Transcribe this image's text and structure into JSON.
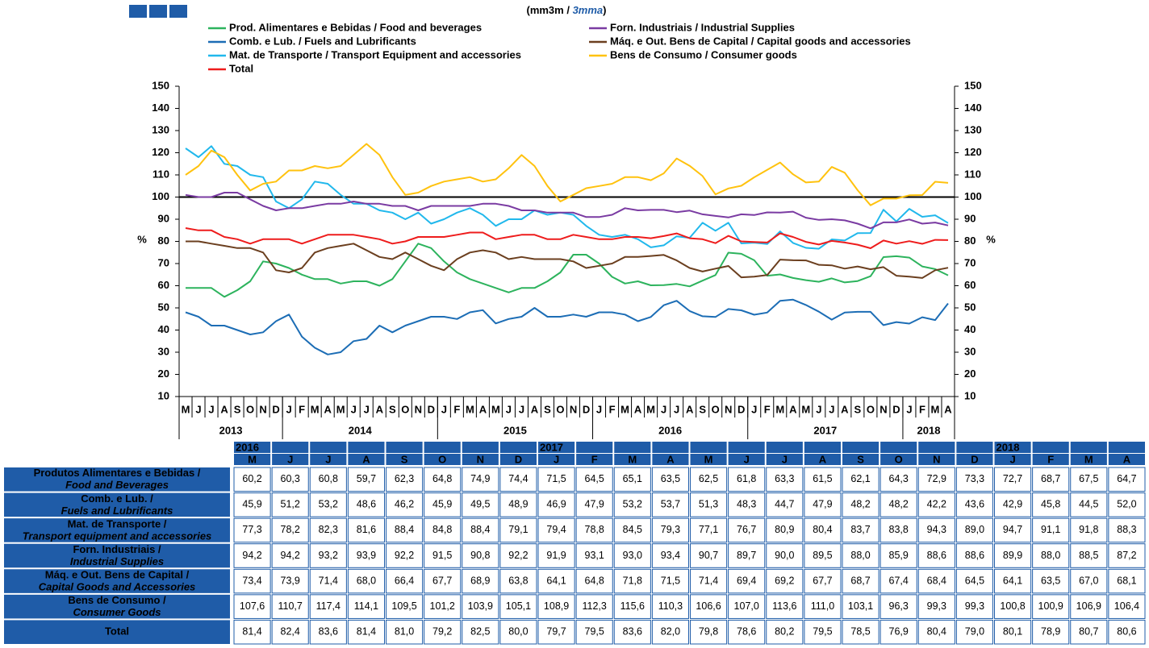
{
  "chart_data": {
    "type": "line",
    "unit_parts": [
      "(mm3m /",
      "3mma",
      ")"
    ],
    "y_axis_label": "%",
    "y2_axis_label": "%",
    "categories": [
      "M",
      "J",
      "J",
      "A",
      "S",
      "O",
      "N",
      "D",
      "J",
      "F",
      "M",
      "A",
      "M",
      "J",
      "J",
      "A",
      "S",
      "O",
      "N",
      "D",
      "J",
      "F",
      "M",
      "A",
      "M",
      "J",
      "J",
      "A",
      "S",
      "O",
      "N",
      "D",
      "J",
      "F",
      "M",
      "A",
      "M",
      "J",
      "J",
      "A",
      "S",
      "O",
      "N",
      "D",
      "J",
      "F",
      "M",
      "A",
      "M",
      "J",
      "J",
      "A",
      "S",
      "O",
      "N",
      "D",
      "J",
      "F",
      "M",
      "A"
    ],
    "year_labels": [
      "2013",
      "2014",
      "2015",
      "2016",
      "2017",
      "2018"
    ],
    "ylim": [
      10,
      150
    ],
    "yticks": [
      10,
      20,
      30,
      40,
      50,
      60,
      70,
      80,
      90,
      100,
      110,
      120,
      130,
      140,
      150
    ],
    "y2lim": [
      10,
      150
    ],
    "y2ticks": [
      10,
      20,
      30,
      40,
      50,
      60,
      70,
      80,
      90,
      100,
      110,
      120,
      130,
      140,
      150
    ],
    "reference_line": 100,
    "series": [
      {
        "name": "Prod. Alimentares e Bebidas / Food and beverages",
        "color": "#2db35d",
        "values": [
          59,
          59,
          59,
          55,
          58,
          62,
          71,
          70,
          68,
          65,
          63,
          63,
          61,
          62,
          62,
          60,
          63,
          71,
          79,
          77,
          71,
          66,
          63,
          61,
          59,
          57,
          59,
          59,
          62,
          66,
          74,
          74,
          70,
          64,
          61,
          62,
          60.2,
          60.3,
          60.8,
          59.7,
          62.3,
          64.8,
          74.9,
          74.4,
          71.5,
          64.5,
          65.1,
          63.5,
          62.5,
          61.8,
          63.3,
          61.5,
          62.1,
          64.3,
          72.9,
          73.3,
          72.7,
          68.7,
          67.5,
          64.7
        ]
      },
      {
        "name": "Comb. e Lub. /  Fuels and Lubrificants",
        "color": "#1c6db5",
        "values": [
          48,
          46,
          42,
          42,
          40,
          38,
          39,
          44,
          47,
          37,
          32,
          29,
          30,
          35,
          36,
          42,
          39,
          42,
          44,
          46,
          46,
          45,
          48,
          49,
          43,
          45,
          46,
          50,
          46,
          46,
          47,
          46,
          48,
          48,
          47,
          44,
          45.9,
          51.2,
          53.2,
          48.6,
          46.2,
          45.9,
          49.5,
          48.9,
          46.9,
          47.9,
          53.2,
          53.7,
          51.3,
          48.3,
          44.7,
          47.9,
          48.2,
          48.2,
          42.2,
          43.6,
          42.9,
          45.8,
          44.5,
          52.0
        ]
      },
      {
        "name": "Mat. de Transporte / Transport Equipment and accessories",
        "color": "#21b8ec",
        "values": [
          122,
          118,
          123,
          115,
          114,
          110,
          109,
          98,
          95,
          99,
          107,
          106,
          101,
          97,
          97,
          94,
          93,
          90,
          93,
          88,
          90,
          93,
          95,
          92,
          87,
          90,
          90,
          94,
          92,
          93,
          92,
          87,
          83,
          82,
          83,
          81,
          77.3,
          78.2,
          82.3,
          81.6,
          88.4,
          84.8,
          88.4,
          79.1,
          79.4,
          78.8,
          84.5,
          79.3,
          77.1,
          76.7,
          80.9,
          80.4,
          83.7,
          83.8,
          94.3,
          89.0,
          94.7,
          91.1,
          91.8,
          88.3
        ]
      },
      {
        "name": "Forn. Industriais / Industrial Supplies",
        "color": "#7a3ba2",
        "values": [
          101,
          100,
          100,
          102,
          102,
          99,
          96,
          94,
          95,
          95,
          96,
          97,
          97,
          98,
          97,
          97,
          96,
          96,
          94,
          96,
          96,
          96,
          96,
          97,
          97,
          96,
          94,
          94,
          93,
          93,
          93,
          91,
          91,
          92,
          95,
          94,
          94.2,
          94.2,
          93.2,
          93.9,
          92.2,
          91.5,
          90.8,
          92.2,
          91.9,
          93.1,
          93.0,
          93.4,
          90.7,
          89.7,
          90.0,
          89.5,
          88.0,
          85.9,
          88.6,
          88.6,
          89.9,
          88.0,
          88.5,
          87.2
        ]
      },
      {
        "name": "Máq. e Out. Bens de Capital / Capital goods and accessories",
        "color": "#6b3f1f",
        "values": [
          80,
          80,
          79,
          78,
          77,
          77,
          75,
          67,
          66,
          68,
          75,
          77,
          78,
          79,
          76,
          73,
          72,
          75,
          72,
          69,
          67,
          72,
          75,
          76,
          75,
          72,
          73,
          72,
          72,
          72,
          71,
          68,
          69,
          70,
          73,
          73,
          73.4,
          73.9,
          71.4,
          68.0,
          66.4,
          67.7,
          68.9,
          63.8,
          64.1,
          64.8,
          71.8,
          71.5,
          71.4,
          69.4,
          69.2,
          67.7,
          68.7,
          67.4,
          68.4,
          64.5,
          64.1,
          63.5,
          67.0,
          68.1
        ]
      },
      {
        "name": "Bens de Consumo / Consumer goods",
        "color": "#ffc20e",
        "values": [
          110,
          114,
          121,
          118,
          110,
          103,
          106,
          107,
          112,
          112,
          114,
          113,
          114,
          119,
          124,
          119,
          109,
          101,
          102,
          105,
          107,
          108,
          109,
          107,
          108,
          113,
          119,
          114,
          105,
          98,
          101,
          104,
          105,
          106,
          109,
          109,
          107.6,
          110.7,
          117.4,
          114.1,
          109.5,
          101.2,
          103.9,
          105.1,
          108.9,
          112.3,
          115.6,
          110.3,
          106.6,
          107.0,
          113.6,
          111.0,
          103.1,
          96.3,
          99.3,
          99.3,
          100.8,
          100.9,
          106.9,
          106.4
        ]
      },
      {
        "name": "Total",
        "color": "#ee1c1c",
        "values": [
          86,
          85,
          85,
          82,
          81,
          79,
          81,
          81,
          81,
          79,
          81,
          83,
          83,
          83,
          82,
          81,
          79,
          80,
          82,
          82,
          82,
          83,
          84,
          84,
          81,
          82,
          83,
          83,
          81,
          81,
          83,
          82,
          81,
          81,
          82,
          82,
          81.4,
          82.4,
          83.6,
          81.4,
          81.0,
          79.2,
          82.5,
          80.0,
          79.7,
          79.5,
          83.6,
          82.0,
          79.8,
          78.6,
          80.2,
          79.5,
          78.5,
          76.9,
          80.4,
          79.0,
          80.1,
          78.9,
          80.7,
          80.6
        ]
      }
    ]
  },
  "table": {
    "year_labels": [
      "2016",
      "2017",
      "2018"
    ],
    "months": [
      "M",
      "J",
      "J",
      "A",
      "S",
      "O",
      "N",
      "D",
      "J",
      "F",
      "M",
      "A",
      "M",
      "J",
      "J",
      "A",
      "S",
      "O",
      "N",
      "D",
      "J",
      "F",
      "M",
      "A"
    ],
    "rows": [
      {
        "label": [
          "Produtos Alimentares e Bebidas /",
          "Food and Beverages"
        ],
        "cells": [
          "60,2",
          "60,3",
          "60,8",
          "59,7",
          "62,3",
          "64,8",
          "74,9",
          "74,4",
          "71,5",
          "64,5",
          "65,1",
          "63,5",
          "62,5",
          "61,8",
          "63,3",
          "61,5",
          "62,1",
          "64,3",
          "72,9",
          "73,3",
          "72,7",
          "68,7",
          "67,5",
          "64,7"
        ]
      },
      {
        "label": [
          "Comb. e Lub. /",
          "Fuels and Lubrificants"
        ],
        "cells": [
          "45,9",
          "51,2",
          "53,2",
          "48,6",
          "46,2",
          "45,9",
          "49,5",
          "48,9",
          "46,9",
          "47,9",
          "53,2",
          "53,7",
          "51,3",
          "48,3",
          "44,7",
          "47,9",
          "48,2",
          "48,2",
          "42,2",
          "43,6",
          "42,9",
          "45,8",
          "44,5",
          "52,0"
        ]
      },
      {
        "label": [
          "Mat. de Transporte /",
          "Transport equipment and accessories"
        ],
        "cells": [
          "77,3",
          "78,2",
          "82,3",
          "81,6",
          "88,4",
          "84,8",
          "88,4",
          "79,1",
          "79,4",
          "78,8",
          "84,5",
          "79,3",
          "77,1",
          "76,7",
          "80,9",
          "80,4",
          "83,7",
          "83,8",
          "94,3",
          "89,0",
          "94,7",
          "91,1",
          "91,8",
          "88,3"
        ]
      },
      {
        "label": [
          "Forn. Industriais /",
          "Industrial Supplies"
        ],
        "cells": [
          "94,2",
          "94,2",
          "93,2",
          "93,9",
          "92,2",
          "91,5",
          "90,8",
          "92,2",
          "91,9",
          "93,1",
          "93,0",
          "93,4",
          "90,7",
          "89,7",
          "90,0",
          "89,5",
          "88,0",
          "85,9",
          "88,6",
          "88,6",
          "89,9",
          "88,0",
          "88,5",
          "87,2"
        ]
      },
      {
        "label": [
          "Máq. e Out. Bens de Capital /",
          "Capital Goods and Accessories"
        ],
        "cells": [
          "73,4",
          "73,9",
          "71,4",
          "68,0",
          "66,4",
          "67,7",
          "68,9",
          "63,8",
          "64,1",
          "64,8",
          "71,8",
          "71,5",
          "71,4",
          "69,4",
          "69,2",
          "67,7",
          "68,7",
          "67,4",
          "68,4",
          "64,5",
          "64,1",
          "63,5",
          "67,0",
          "68,1"
        ]
      },
      {
        "label": [
          "Bens de Consumo /",
          "Consumer Goods"
        ],
        "cells": [
          "107,6",
          "110,7",
          "117,4",
          "114,1",
          "109,5",
          "101,2",
          "103,9",
          "105,1",
          "108,9",
          "112,3",
          "115,6",
          "110,3",
          "106,6",
          "107,0",
          "113,6",
          "111,0",
          "103,1",
          "96,3",
          "99,3",
          "99,3",
          "100,8",
          "100,9",
          "106,9",
          "106,4"
        ]
      },
      {
        "label": [
          "Total"
        ],
        "cells": [
          "81,4",
          "82,4",
          "83,6",
          "81,4",
          "81,0",
          "79,2",
          "82,5",
          "80,0",
          "79,7",
          "79,5",
          "83,6",
          "82,0",
          "79,8",
          "78,6",
          "80,2",
          "79,5",
          "78,5",
          "76,9",
          "80,4",
          "79,0",
          "80,1",
          "78,9",
          "80,7",
          "80,6"
        ]
      }
    ]
  }
}
